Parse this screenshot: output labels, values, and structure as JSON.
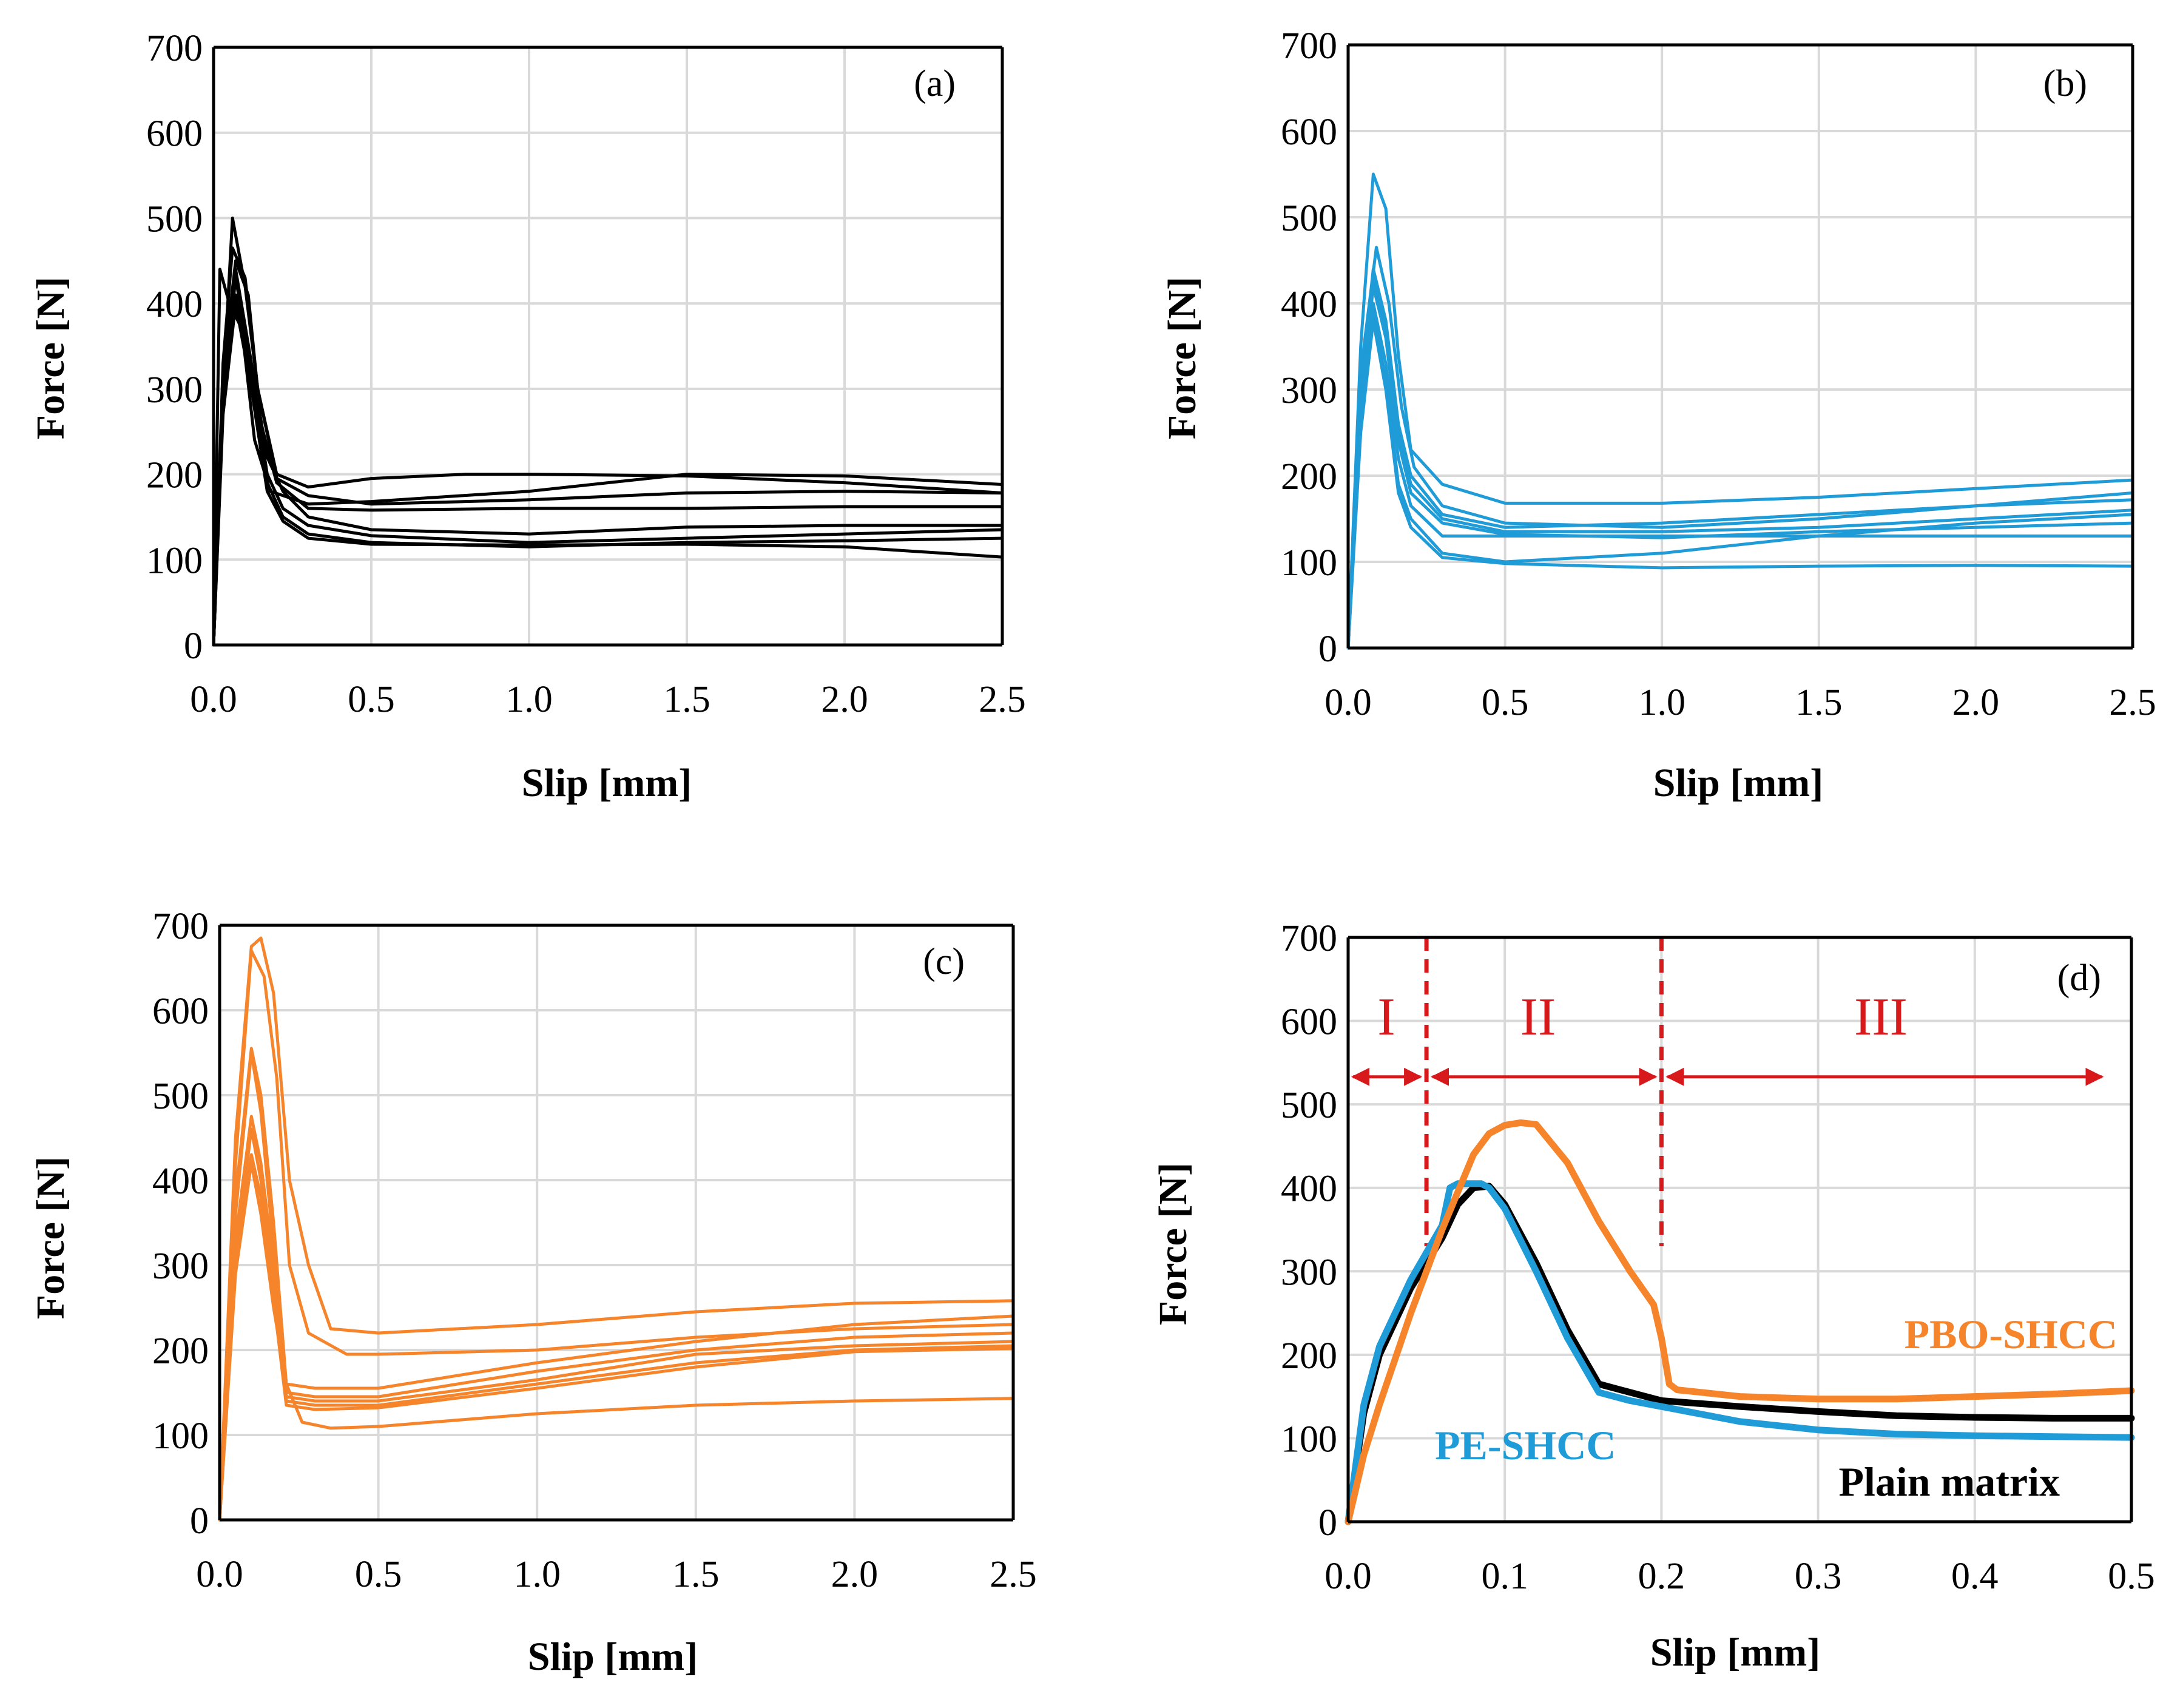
{
  "colors": {
    "plain": "#000000",
    "pe": "#1f9bd7",
    "pbo": "#f5842a",
    "grid": "#d9d9d9",
    "regions": "#d7191c"
  },
  "chart_data": [
    {
      "panel": "(a)",
      "type": "line",
      "xlabel": "Slip [mm]",
      "ylabel": "Force [N]",
      "xlim": [
        0,
        2.5
      ],
      "ylim": [
        0,
        700
      ],
      "xticks": [
        "0.0",
        "0.5",
        "1.0",
        "1.5",
        "2.0",
        "2.5"
      ],
      "yticks": [
        "0",
        "100",
        "200",
        "300",
        "400",
        "500",
        "600",
        "700"
      ],
      "grid": true,
      "color": "#000000",
      "series": [
        {
          "x": [
            0,
            0.03,
            0.06,
            0.1,
            0.14,
            0.2,
            0.3,
            0.5,
            0.8,
            1.0,
            1.5,
            2.0,
            2.5
          ],
          "y": [
            0,
            300,
            500,
            420,
            300,
            200,
            185,
            195,
            200,
            200,
            198,
            190,
            178
          ]
        },
        {
          "x": [
            0,
            0.02,
            0.05,
            0.09,
            0.13,
            0.18,
            0.3,
            0.5,
            1.0,
            1.5,
            2.0,
            2.5
          ],
          "y": [
            0,
            440,
            400,
            370,
            240,
            180,
            165,
            168,
            180,
            200,
            198,
            188
          ]
        },
        {
          "x": [
            0,
            0.03,
            0.06,
            0.1,
            0.14,
            0.2,
            0.3,
            0.5,
            1.0,
            1.5,
            2.0,
            2.5
          ],
          "y": [
            0,
            330,
            465,
            430,
            300,
            195,
            175,
            165,
            170,
            178,
            180,
            178
          ]
        },
        {
          "x": [
            0,
            0.03,
            0.07,
            0.11,
            0.15,
            0.2,
            0.3,
            0.5,
            1.0,
            1.5,
            2.0,
            2.5
          ],
          "y": [
            0,
            320,
            450,
            410,
            260,
            190,
            160,
            158,
            160,
            160,
            162,
            162
          ]
        },
        {
          "x": [
            0,
            0.03,
            0.07,
            0.12,
            0.17,
            0.22,
            0.3,
            0.5,
            1.0,
            1.5,
            2.0,
            2.5
          ],
          "y": [
            0,
            300,
            440,
            330,
            220,
            180,
            150,
            135,
            130,
            138,
            140,
            140
          ]
        },
        {
          "x": [
            0,
            0.03,
            0.07,
            0.12,
            0.17,
            0.22,
            0.3,
            0.5,
            1.0,
            1.5,
            2.0,
            2.5
          ],
          "y": [
            0,
            290,
            430,
            320,
            200,
            160,
            140,
            128,
            120,
            125,
            130,
            135
          ]
        },
        {
          "x": [
            0,
            0.03,
            0.07,
            0.12,
            0.17,
            0.22,
            0.3,
            0.5,
            1.0,
            1.5,
            2.0,
            2.5
          ],
          "y": [
            0,
            280,
            410,
            310,
            190,
            150,
            130,
            120,
            115,
            120,
            122,
            125
          ]
        },
        {
          "x": [
            0,
            0.03,
            0.07,
            0.12,
            0.17,
            0.22,
            0.3,
            0.5,
            1.0,
            1.5,
            2.0,
            2.5
          ],
          "y": [
            0,
            270,
            400,
            300,
            180,
            145,
            125,
            118,
            117,
            118,
            115,
            103
          ]
        }
      ]
    },
    {
      "panel": "(b)",
      "type": "line",
      "xlabel": "Slip [mm]",
      "ylabel": "Force [N]",
      "xlim": [
        0,
        2.5
      ],
      "ylim": [
        0,
        700
      ],
      "xticks": [
        "0.0",
        "0.5",
        "1.0",
        "1.5",
        "2.0",
        "2.5"
      ],
      "yticks": [
        "0",
        "100",
        "200",
        "300",
        "400",
        "500",
        "600",
        "700"
      ],
      "grid": true,
      "color": "#1f9bd7",
      "series": [
        {
          "x": [
            0,
            0.04,
            0.08,
            0.12,
            0.16,
            0.2,
            0.3,
            0.5,
            1.0,
            1.5,
            2.0,
            2.5
          ],
          "y": [
            0,
            350,
            550,
            510,
            340,
            230,
            190,
            168,
            168,
            175,
            185,
            195
          ]
        },
        {
          "x": [
            0,
            0.04,
            0.09,
            0.13,
            0.17,
            0.21,
            0.3,
            0.5,
            1.0,
            1.5,
            2.0,
            2.5
          ],
          "y": [
            0,
            320,
            465,
            400,
            280,
            210,
            165,
            145,
            140,
            150,
            165,
            180
          ]
        },
        {
          "x": [
            0,
            0.04,
            0.08,
            0.12,
            0.16,
            0.2,
            0.3,
            0.5,
            1.0,
            1.5,
            2.0,
            2.5
          ],
          "y": [
            0,
            300,
            440,
            380,
            260,
            200,
            155,
            140,
            145,
            155,
            165,
            172
          ]
        },
        {
          "x": [
            0,
            0.04,
            0.08,
            0.12,
            0.16,
            0.2,
            0.3,
            0.5,
            1.0,
            1.5,
            2.0,
            2.5
          ],
          "y": [
            0,
            290,
            430,
            370,
            250,
            190,
            150,
            135,
            135,
            140,
            150,
            160
          ]
        },
        {
          "x": [
            0,
            0.04,
            0.08,
            0.12,
            0.16,
            0.2,
            0.3,
            0.5,
            1.0,
            1.5,
            2.0,
            2.5
          ],
          "y": [
            0,
            280,
            420,
            360,
            240,
            180,
            145,
            132,
            128,
            135,
            140,
            145
          ]
        },
        {
          "x": [
            0,
            0.04,
            0.08,
            0.12,
            0.16,
            0.2,
            0.3,
            0.5,
            1.0,
            1.5,
            2.0,
            2.5
          ],
          "y": [
            0,
            270,
            400,
            330,
            220,
            165,
            130,
            130,
            130,
            130,
            130,
            130
          ]
        },
        {
          "x": [
            0,
            0.04,
            0.08,
            0.12,
            0.16,
            0.2,
            0.3,
            0.5,
            1.0,
            1.5,
            2.0,
            2.5
          ],
          "y": [
            0,
            260,
            390,
            310,
            190,
            150,
            110,
            100,
            110,
            130,
            145,
            155
          ]
        },
        {
          "x": [
            0,
            0.04,
            0.08,
            0.12,
            0.16,
            0.2,
            0.3,
            0.5,
            1.0,
            1.5,
            2.0,
            2.5
          ],
          "y": [
            0,
            250,
            380,
            300,
            180,
            140,
            105,
            98,
            93,
            95,
            96,
            95
          ]
        }
      ]
    },
    {
      "panel": "(c)",
      "type": "line",
      "xlabel": "Slip [mm]",
      "ylabel": "Force [N]",
      "xlim": [
        0,
        2.5
      ],
      "ylim": [
        0,
        700
      ],
      "xticks": [
        "0.0",
        "0.5",
        "1.0",
        "1.5",
        "2.0",
        "2.5"
      ],
      "yticks": [
        "0",
        "100",
        "200",
        "300",
        "400",
        "500",
        "600",
        "700"
      ],
      "grid": true,
      "color": "#f5842a",
      "series": [
        {
          "x": [
            0,
            0.05,
            0.1,
            0.13,
            0.17,
            0.22,
            0.28,
            0.35,
            0.5,
            1.0,
            1.5,
            2.0,
            2.5
          ],
          "y": [
            0,
            450,
            675,
            685,
            620,
            400,
            300,
            225,
            220,
            230,
            245,
            255,
            258
          ]
        },
        {
          "x": [
            0,
            0.05,
            0.1,
            0.14,
            0.18,
            0.22,
            0.28,
            0.4,
            0.5,
            1.0,
            1.5,
            2.0,
            2.5
          ],
          "y": [
            0,
            420,
            670,
            640,
            520,
            300,
            220,
            195,
            195,
            200,
            215,
            225,
            230
          ]
        },
        {
          "x": [
            0,
            0.05,
            0.1,
            0.13,
            0.17,
            0.21,
            0.3,
            0.5,
            1.0,
            1.5,
            2.0,
            2.5
          ],
          "y": [
            0,
            380,
            555,
            500,
            350,
            160,
            155,
            155,
            185,
            210,
            230,
            240
          ]
        },
        {
          "x": [
            0,
            0.05,
            0.1,
            0.13,
            0.17,
            0.21,
            0.3,
            0.5,
            1.0,
            1.5,
            2.0,
            2.5
          ],
          "y": [
            0,
            360,
            550,
            480,
            320,
            150,
            145,
            145,
            175,
            200,
            215,
            220
          ]
        },
        {
          "x": [
            0,
            0.05,
            0.1,
            0.13,
            0.17,
            0.21,
            0.3,
            0.5,
            1.0,
            1.5,
            2.0,
            2.5
          ],
          "y": [
            0,
            330,
            475,
            420,
            300,
            145,
            140,
            140,
            165,
            195,
            205,
            210
          ]
        },
        {
          "x": [
            0,
            0.05,
            0.1,
            0.13,
            0.17,
            0.21,
            0.3,
            0.5,
            1.0,
            1.5,
            2.0,
            2.5
          ],
          "y": [
            0,
            310,
            460,
            400,
            280,
            140,
            135,
            135,
            160,
            185,
            200,
            205
          ]
        },
        {
          "x": [
            0,
            0.05,
            0.1,
            0.13,
            0.17,
            0.21,
            0.3,
            0.5,
            1.0,
            1.5,
            2.0,
            2.5
          ],
          "y": [
            0,
            300,
            430,
            380,
            260,
            135,
            130,
            132,
            155,
            180,
            198,
            202
          ]
        },
        {
          "x": [
            0,
            0.05,
            0.1,
            0.13,
            0.17,
            0.21,
            0.26,
            0.35,
            0.5,
            1.0,
            1.5,
            2.0,
            2.5
          ],
          "y": [
            0,
            290,
            420,
            360,
            250,
            160,
            115,
            108,
            110,
            125,
            135,
            140,
            143
          ]
        }
      ]
    },
    {
      "panel": "(d)",
      "type": "line",
      "xlabel": "Slip [mm]",
      "ylabel": "Force [N]",
      "xlim": [
        0,
        0.5
      ],
      "ylim": [
        0,
        700
      ],
      "xticks": [
        "0.0",
        "0.1",
        "0.2",
        "0.3",
        "0.4",
        "0.5"
      ],
      "yticks": [
        "0",
        "100",
        "200",
        "300",
        "400",
        "500",
        "600",
        "700"
      ],
      "grid": true,
      "region_boundaries": [
        0.05,
        0.2
      ],
      "regions": [
        "I",
        "II",
        "III"
      ],
      "series": [
        {
          "name": "Plain matrix",
          "color": "#000000",
          "x": [
            0,
            0.01,
            0.02,
            0.04,
            0.06,
            0.07,
            0.08,
            0.09,
            0.1,
            0.12,
            0.14,
            0.16,
            0.18,
            0.2,
            0.25,
            0.3,
            0.35,
            0.4,
            0.45,
            0.5
          ],
          "y": [
            0,
            130,
            200,
            280,
            340,
            380,
            400,
            402,
            380,
            310,
            230,
            165,
            155,
            145,
            138,
            132,
            127,
            125,
            124,
            124
          ]
        },
        {
          "name": "PE-SHCC",
          "color": "#1f9bd7",
          "x": [
            0,
            0.01,
            0.02,
            0.04,
            0.06,
            0.065,
            0.07,
            0.08,
            0.085,
            0.09,
            0.1,
            0.12,
            0.14,
            0.16,
            0.18,
            0.2,
            0.25,
            0.3,
            0.35,
            0.4,
            0.45,
            0.5
          ],
          "y": [
            0,
            140,
            210,
            290,
            355,
            400,
            405,
            405,
            405,
            400,
            375,
            300,
            220,
            155,
            145,
            138,
            120,
            110,
            105,
            103,
            102,
            101
          ]
        },
        {
          "name": "PBO-SHCC",
          "color": "#f5842a",
          "x": [
            0,
            0.01,
            0.02,
            0.04,
            0.06,
            0.08,
            0.09,
            0.1,
            0.11,
            0.12,
            0.14,
            0.16,
            0.18,
            0.195,
            0.2,
            0.205,
            0.21,
            0.25,
            0.3,
            0.35,
            0.4,
            0.45,
            0.5
          ],
          "y": [
            0,
            80,
            140,
            250,
            350,
            440,
            465,
            475,
            478,
            476,
            430,
            360,
            300,
            260,
            220,
            165,
            158,
            150,
            147,
            147,
            150,
            153,
            157
          ]
        }
      ],
      "annotations": [
        "PBO-SHCC",
        "PE-SHCC",
        "Plain matrix"
      ]
    }
  ]
}
